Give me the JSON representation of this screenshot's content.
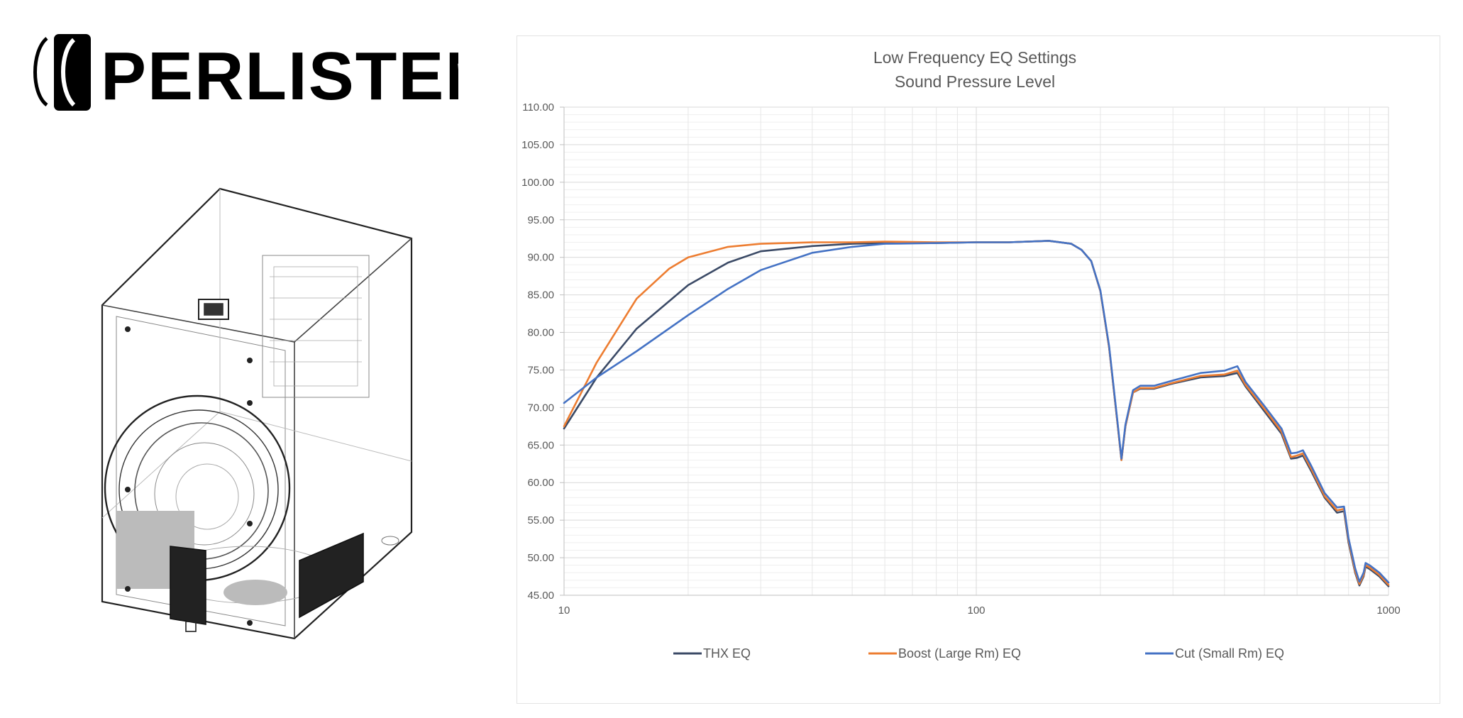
{
  "brand": {
    "name": "PERLISTEN"
  },
  "colors": {
    "thx": "#3b4a66",
    "boost": "#ed7d31",
    "cut": "#4472c4",
    "grid": "#d9d9d9",
    "text": "#595959"
  },
  "chart_data": {
    "type": "line",
    "title": "Low Frequency EQ Settings",
    "subtitle": "Sound Pressure Level",
    "x_scale": "log",
    "xlim": [
      10,
      1000
    ],
    "ylim": [
      45,
      110
    ],
    "x_ticks": [
      "10",
      "100",
      "1000"
    ],
    "y_ticks": [
      "45.00",
      "50.00",
      "55.00",
      "60.00",
      "65.00",
      "70.00",
      "75.00",
      "80.00",
      "85.00",
      "90.00",
      "95.00",
      "100.00",
      "105.00",
      "110.00"
    ],
    "grid": true,
    "legend_position": "bottom",
    "series": [
      {
        "name": "THX EQ",
        "color": "#3b4a66",
        "x": [
          10,
          12,
          15,
          20,
          25,
          30,
          40,
          50,
          60,
          80,
          100,
          120,
          150,
          170,
          180,
          190,
          200,
          210,
          220,
          225,
          230,
          240,
          250,
          270,
          300,
          350,
          400,
          430,
          450,
          500,
          550,
          580,
          600,
          620,
          650,
          700,
          750,
          780,
          800,
          830,
          850,
          870,
          880,
          900,
          950,
          1000
        ],
        "y": [
          67.2,
          74.0,
          80.5,
          86.3,
          89.3,
          90.8,
          91.5,
          91.8,
          91.9,
          91.9,
          92.0,
          92.0,
          92.2,
          91.8,
          91.0,
          89.5,
          85.5,
          78.0,
          68.0,
          63.0,
          67.5,
          72.0,
          72.5,
          72.5,
          73.2,
          74.0,
          74.2,
          74.6,
          72.8,
          69.5,
          66.5,
          63.2,
          63.3,
          63.6,
          61.5,
          58.0,
          56.0,
          56.2,
          52.0,
          48.0,
          46.3,
          47.5,
          48.8,
          48.5,
          47.5,
          46.2
        ]
      },
      {
        "name": "Boost (Large Rm) EQ",
        "color": "#ed7d31",
        "x": [
          10,
          12,
          15,
          18,
          20,
          25,
          30,
          40,
          50,
          60,
          80,
          100,
          120,
          150,
          170,
          180,
          190,
          200,
          210,
          220,
          225,
          230,
          240,
          250,
          270,
          300,
          350,
          400,
          430,
          450,
          500,
          550,
          580,
          600,
          620,
          650,
          700,
          750,
          780,
          800,
          830,
          850,
          870,
          880,
          900,
          950,
          1000
        ],
        "y": [
          67.5,
          76.0,
          84.5,
          88.5,
          90.0,
          91.4,
          91.8,
          92.0,
          92.0,
          92.1,
          92.0,
          92.0,
          92.0,
          92.2,
          91.8,
          91.0,
          89.5,
          85.5,
          78.0,
          68.0,
          63.0,
          67.5,
          72.0,
          72.6,
          72.6,
          73.3,
          74.2,
          74.4,
          74.9,
          73.0,
          69.8,
          66.8,
          63.4,
          63.6,
          63.9,
          61.8,
          58.2,
          56.3,
          56.5,
          52.3,
          48.2,
          46.5,
          47.7,
          49.0,
          48.7,
          47.7,
          46.4
        ]
      },
      {
        "name": "Cut (Small Rm) EQ",
        "color": "#4472c4",
        "x": [
          10,
          12,
          15,
          20,
          25,
          30,
          40,
          50,
          60,
          80,
          100,
          120,
          150,
          170,
          180,
          190,
          200,
          210,
          220,
          225,
          230,
          240,
          250,
          270,
          300,
          350,
          400,
          430,
          450,
          500,
          550,
          580,
          600,
          620,
          650,
          700,
          750,
          780,
          800,
          830,
          850,
          870,
          880,
          900,
          950,
          1000
        ],
        "y": [
          70.6,
          74.0,
          77.5,
          82.3,
          85.8,
          88.3,
          90.6,
          91.4,
          91.8,
          91.9,
          92.0,
          92.0,
          92.2,
          91.8,
          91.0,
          89.5,
          85.6,
          78.2,
          68.2,
          63.2,
          67.7,
          72.3,
          72.9,
          72.9,
          73.6,
          74.6,
          74.9,
          75.5,
          73.4,
          70.2,
          67.2,
          63.9,
          64.0,
          64.3,
          62.2,
          58.6,
          56.7,
          56.8,
          52.6,
          48.6,
          46.8,
          48.0,
          49.3,
          49.0,
          48.0,
          46.7
        ]
      }
    ]
  }
}
